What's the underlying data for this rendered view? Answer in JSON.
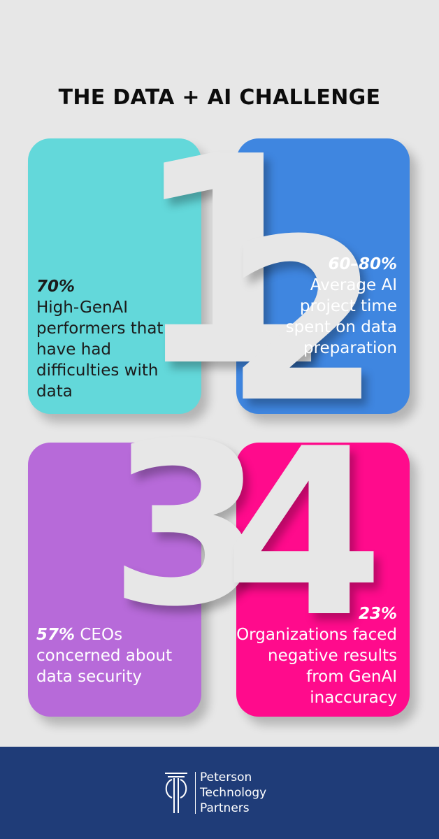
{
  "title": "THE DATA + AI CHALLENGE",
  "colors": {
    "background": "#e7e7e7",
    "card1": "#63d8da",
    "card2": "#3f86e0",
    "card3": "#b76ad9",
    "card4": "#ff0b8c",
    "footer": "#1f3c78"
  },
  "cards": [
    {
      "number": "1",
      "stat": "70%",
      "text": "High-GenAI performers that have had difficulties with data"
    },
    {
      "number": "2",
      "stat": "60–80%",
      "text": "Average AI project time spent on data preparation"
    },
    {
      "number": "3",
      "stat": "57%",
      "text": "CEOs concerned about data security"
    },
    {
      "number": "4",
      "stat": "23%",
      "text": "Organizations faced negative results from GenAI inaccuracy"
    }
  ],
  "footer": {
    "logo_icon": "pillar-logo-icon",
    "company_lines": [
      "Peterson",
      "Technology",
      "Partners"
    ]
  }
}
